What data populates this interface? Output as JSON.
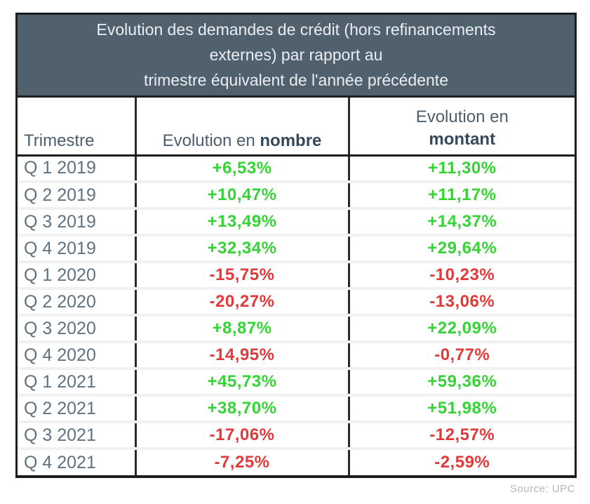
{
  "title": {
    "line1": "Evolution des demandes de crédit (hors refinancements",
    "line2": "externes) par rapport au",
    "line3": "trimestre équivalent de l'année précédente"
  },
  "table": {
    "headers": {
      "col1": "Trimestre",
      "col2_prefix": "Evolution en ",
      "col2_bold": "nombre",
      "col3_prefix": "Evolution en",
      "col3_bold": "montant"
    },
    "rows": [
      {
        "quarter": "Q 1 2019",
        "nombre": "+6,53%",
        "montant": "+11,30%"
      },
      {
        "quarter": "Q 2 2019",
        "nombre": "+10,47%",
        "montant": "+11,17%"
      },
      {
        "quarter": "Q 3 2019",
        "nombre": "+13,49%",
        "montant": "+14,37%"
      },
      {
        "quarter": "Q 4 2019",
        "nombre": "+32,34%",
        "montant": "+29,64%"
      },
      {
        "quarter": "Q 1 2020",
        "nombre": "-15,75%",
        "montant": "-10,23%"
      },
      {
        "quarter": "Q 2 2020",
        "nombre": "-20,27%",
        "montant": "-13,06%"
      },
      {
        "quarter": "Q 3 2020",
        "nombre": "+8,87%",
        "montant": "+22,09%"
      },
      {
        "quarter": "Q 4 2020",
        "nombre": "-14,95%",
        "montant": "-0,77%"
      },
      {
        "quarter": "Q 1 2021",
        "nombre": "+45,73%",
        "montant": "+59,36%"
      },
      {
        "quarter": "Q 2 2021",
        "nombre": "+38,70%",
        "montant": "+51,98%"
      },
      {
        "quarter": "Q 3 2021",
        "nombre": "-17,06%",
        "montant": "-12,57%"
      },
      {
        "quarter": "Q 4 2021",
        "nombre": "-7,25%",
        "montant": "-2,59%"
      }
    ]
  },
  "footer": {
    "source": "Source: UPC"
  },
  "colors": {
    "positive": "#33d433",
    "negative": "#e23a3a",
    "header_bg": "#51606d",
    "header_text": "#e9eef2"
  },
  "chart_data": {
    "type": "table",
    "title": "Evolution des demandes de crédit (hors refinancements externes) par rapport au trimestre équivalent de l'année précédente",
    "categories": [
      "Q 1 2019",
      "Q 2 2019",
      "Q 3 2019",
      "Q 4 2019",
      "Q 1 2020",
      "Q 2 2020",
      "Q 3 2020",
      "Q 4 2020",
      "Q 1 2021",
      "Q 2 2021",
      "Q 3 2021",
      "Q 4 2021"
    ],
    "series": [
      {
        "name": "Evolution en nombre",
        "unit": "%",
        "values": [
          6.53,
          10.47,
          13.49,
          32.34,
          -15.75,
          -20.27,
          8.87,
          -14.95,
          45.73,
          38.7,
          -17.06,
          -7.25
        ]
      },
      {
        "name": "Evolution en montant",
        "unit": "%",
        "values": [
          11.3,
          11.17,
          14.37,
          29.64,
          -10.23,
          -13.06,
          22.09,
          -0.77,
          59.36,
          51.98,
          -12.57,
          -2.59
        ]
      }
    ],
    "source": "Source: UPC"
  }
}
